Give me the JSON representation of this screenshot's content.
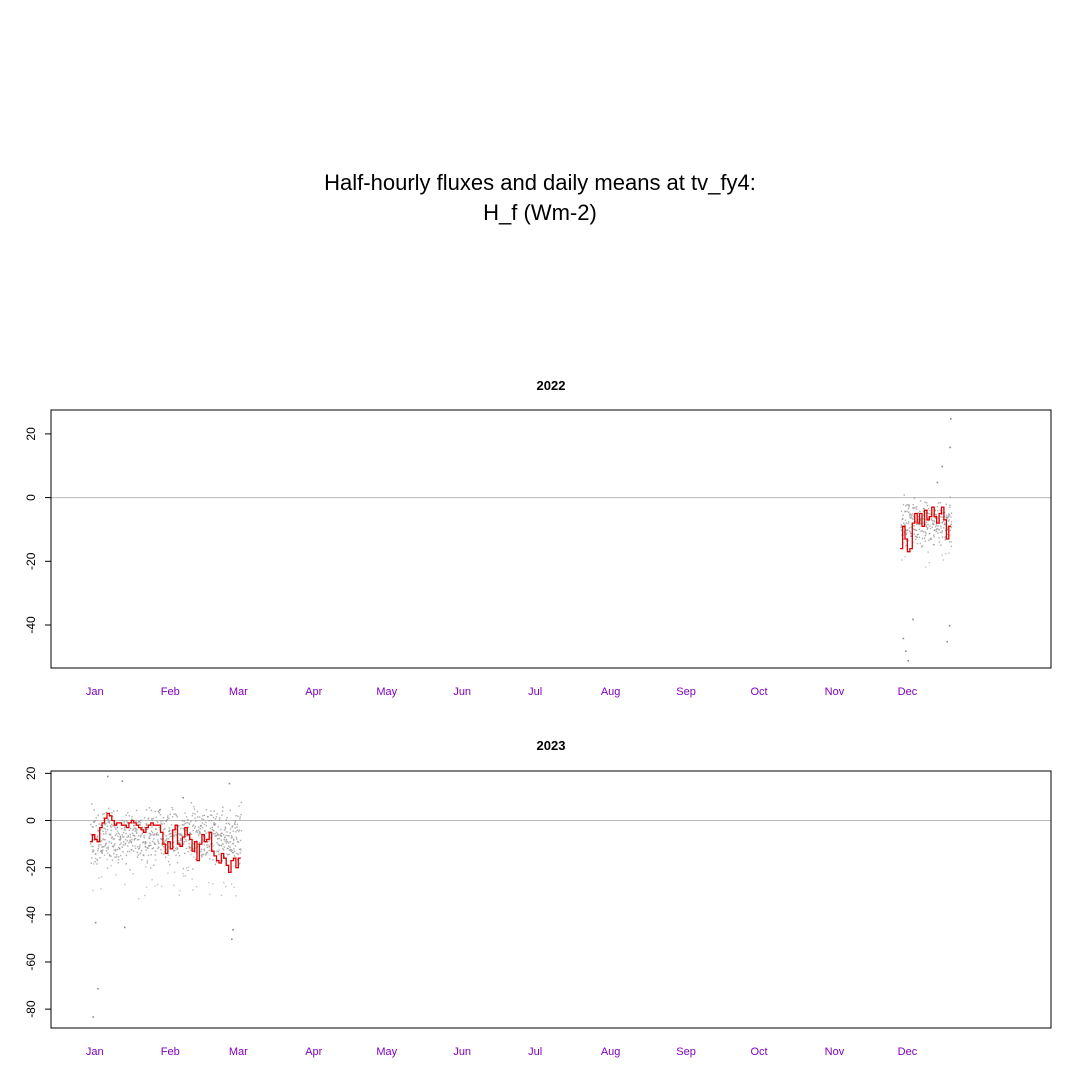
{
  "title": {
    "line1": "Half-hourly fluxes and daily means at tv_fy4:",
    "line2": "H_f (Wm-2)"
  },
  "colors": {
    "raw_points": "#8a8a8a",
    "daily_mean": "#dd0000",
    "zero_line": "#bbbbbb",
    "month_labels": "#8000c0",
    "axis": "#000000"
  },
  "chart_data": [
    {
      "type": "scatter",
      "title": "2022",
      "xlabel": "",
      "ylabel": "",
      "month_labels": [
        "Jan",
        "Feb",
        "Mar",
        "Apr",
        "May",
        "Jun",
        "Jul",
        "Aug",
        "Sep",
        "Oct",
        "Nov",
        "Dec"
      ],
      "xlim_doy": [
        -18,
        393
      ],
      "ylim": [
        -53.5,
        27.5
      ],
      "yticks": [
        -40,
        -20,
        0,
        20
      ],
      "reference_line": 0,
      "grid": false,
      "series": [
        {
          "kind": "daily_mean",
          "x_doy": [
            331,
            332,
            333,
            334,
            335,
            336,
            337,
            338,
            339,
            340,
            341,
            342,
            343,
            344,
            345,
            346,
            347,
            348,
            349,
            350,
            351
          ],
          "values": [
            -16,
            -9,
            -13,
            -17,
            -16,
            -8,
            -5,
            -8,
            -5,
            -9,
            -4,
            -7,
            -6,
            -3,
            -6,
            -8,
            -5,
            -3,
            -7,
            -13,
            -9
          ]
        },
        {
          "kind": "half_hourly",
          "day_start": 331,
          "day_end": 352,
          "mean": -7,
          "spread": 4,
          "outliers": [
            {
              "x_doy": 334,
              "value": -51
            },
            {
              "x_doy": 333,
              "value": -48
            },
            {
              "x_doy": 332,
              "value": -44
            },
            {
              "x_doy": 336,
              "value": -38
            },
            {
              "x_doy": 350,
              "value": -45
            },
            {
              "x_doy": 351,
              "value": -40
            },
            {
              "x_doy": 351.5,
              "value": 25
            },
            {
              "x_doy": 351.2,
              "value": 16
            },
            {
              "x_doy": 348,
              "value": 10
            },
            {
              "x_doy": 346,
              "value": 5
            }
          ]
        }
      ]
    },
    {
      "type": "scatter",
      "title": "2023",
      "xlabel": "",
      "ylabel": "",
      "month_labels": [
        "Jan",
        "Feb",
        "Mar",
        "Apr",
        "May",
        "Jun",
        "Jul",
        "Aug",
        "Sep",
        "Oct",
        "Nov",
        "Dec"
      ],
      "xlim_doy": [
        -18,
        393
      ],
      "ylim": [
        -88,
        21
      ],
      "yticks": [
        -80,
        -60,
        -40,
        -20,
        0,
        20
      ],
      "reference_line": 0,
      "grid": false,
      "series": [
        {
          "kind": "daily_mean",
          "x_doy": [
            -2,
            -1,
            0,
            1,
            2,
            3,
            4,
            5,
            6,
            7,
            8,
            9,
            10,
            11,
            12,
            13,
            14,
            15,
            16,
            17,
            18,
            19,
            20,
            21,
            22,
            23,
            24,
            25,
            26,
            27,
            28,
            29,
            30,
            31,
            32,
            33,
            34,
            35,
            36,
            37,
            38,
            39,
            40,
            41,
            42,
            43,
            44,
            45,
            46,
            47,
            48,
            49,
            50,
            51,
            52,
            53,
            54,
            55,
            56,
            57,
            58,
            59
          ],
          "values": [
            -9,
            -6,
            -8,
            -9,
            -3,
            -1,
            1,
            3,
            2,
            0,
            -2,
            -1,
            -1,
            -2,
            -2,
            -3,
            -1,
            0,
            -1,
            -2,
            -3,
            -4,
            -5,
            -3,
            -2,
            -1,
            -2,
            -2,
            -2,
            -5,
            -10,
            -14,
            -9,
            -12,
            -4,
            -2,
            -10,
            -11,
            -7,
            -3,
            -6,
            -8,
            -13,
            -9,
            -17,
            -10,
            -6,
            -9,
            -8,
            -5,
            -13,
            -15,
            -17,
            -18,
            -14,
            -16,
            -19,
            -22,
            -17,
            -16,
            -20,
            -16
          ]
        },
        {
          "kind": "half_hourly",
          "day_start": -2,
          "day_end": 60,
          "mean": -6,
          "spread": 7,
          "outliers": [
            {
              "x_doy": -1,
              "value": -83
            },
            {
              "x_doy": 1,
              "value": -71
            },
            {
              "x_doy": 0,
              "value": -43
            },
            {
              "x_doy": 12,
              "value": -45
            },
            {
              "x_doy": 56,
              "value": -50
            },
            {
              "x_doy": 56.5,
              "value": -46
            },
            {
              "x_doy": 55,
              "value": 16
            },
            {
              "x_doy": 5,
              "value": 19
            },
            {
              "x_doy": 11,
              "value": 17
            },
            {
              "x_doy": 36,
              "value": 10
            }
          ]
        }
      ]
    }
  ]
}
